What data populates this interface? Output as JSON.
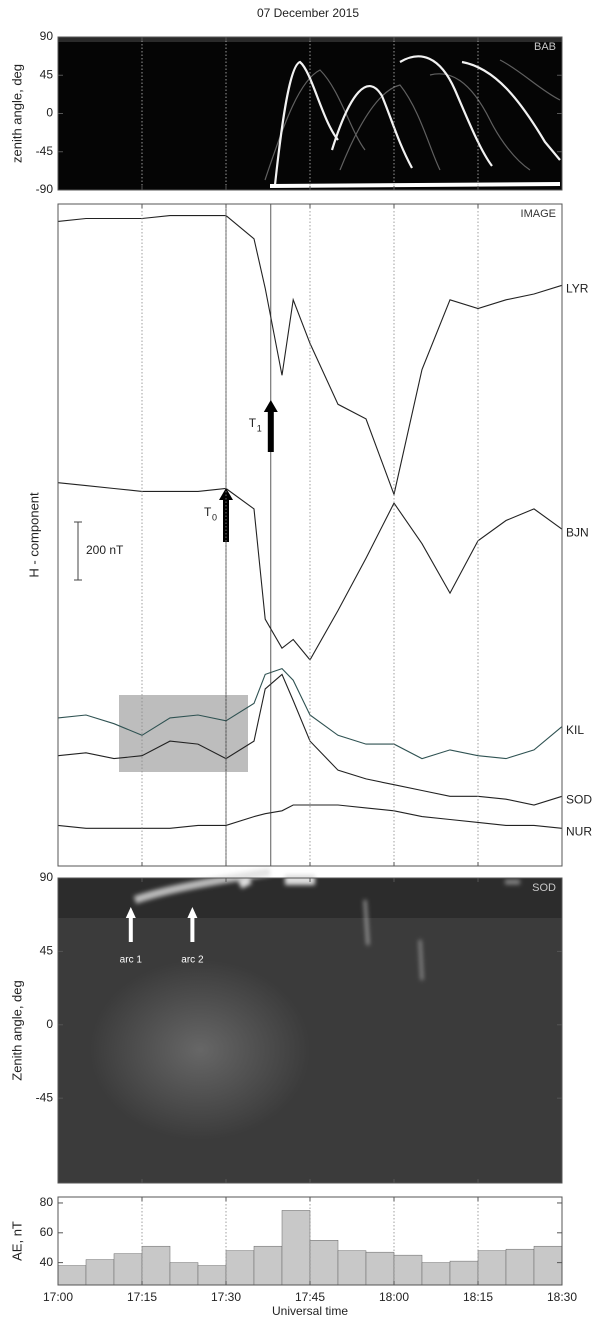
{
  "title": "07 December 2015",
  "chart_data": [
    {
      "type": "image",
      "label": "BAB",
      "y_label": "zenith angle, deg",
      "ylim": [
        -90,
        90
      ],
      "yticks": [
        90,
        45,
        0,
        -45,
        -90
      ],
      "xlim": [
        "17:00",
        "18:30"
      ],
      "xticks": [
        "17:00",
        "17:15",
        "17:30",
        "17:45",
        "18:00",
        "18:15",
        "18:30"
      ],
      "grid": true
    },
    {
      "type": "line",
      "label": "IMAGE",
      "y_label": "H - component",
      "xlim": [
        "17:00",
        "18:30"
      ],
      "xticks": [
        "17:00",
        "17:15",
        "17:30",
        "17:45",
        "18:00",
        "18:15",
        "18:30"
      ],
      "grid": true,
      "ylim": [
        0,
        2280
      ],
      "x": [
        "17:00",
        "17:05",
        "17:10",
        "17:15",
        "17:20",
        "17:25",
        "17:30",
        "17:35",
        "17:37",
        "17:40",
        "17:42",
        "17:45",
        "17:50",
        "17:55",
        "18:00",
        "18:05",
        "18:10",
        "18:15",
        "18:20",
        "18:25",
        "18:30"
      ],
      "series": [
        {
          "name": "LYR",
          "color": "#222222",
          "values": [
            2220,
            2230,
            2230,
            2230,
            2240,
            2240,
            2240,
            2160,
            1990,
            1690,
            1950,
            1800,
            1590,
            1540,
            1280,
            1710,
            1950,
            1920,
            1950,
            1970,
            2000
          ]
        },
        {
          "name": "BJN",
          "color": "#222222",
          "values": [
            1320,
            1310,
            1300,
            1290,
            1290,
            1290,
            1300,
            1230,
            850,
            750,
            780,
            710,
            880,
            1060,
            1250,
            1110,
            940,
            1120,
            1190,
            1230,
            1160
          ]
        },
        {
          "name": "KIL",
          "color": "#2f5252",
          "values": [
            510,
            520,
            490,
            450,
            510,
            520,
            500,
            560,
            660,
            680,
            640,
            520,
            450,
            420,
            420,
            370,
            400,
            380,
            370,
            400,
            480
          ]
        },
        {
          "name": "SOD",
          "color": "#222222",
          "values": [
            380,
            390,
            370,
            380,
            430,
            420,
            370,
            430,
            610,
            660,
            570,
            430,
            330,
            300,
            280,
            260,
            240,
            240,
            230,
            210,
            240
          ]
        },
        {
          "name": "NUR",
          "color": "#222222",
          "values": [
            140,
            130,
            130,
            130,
            130,
            140,
            140,
            170,
            180,
            190,
            210,
            210,
            210,
            200,
            190,
            170,
            160,
            150,
            140,
            140,
            130
          ]
        }
      ],
      "scale_bar": {
        "value": 200,
        "label": "200 nT"
      },
      "annotations": [
        {
          "label": "T",
          "sub": "0",
          "x": "17:30"
        },
        {
          "label": "T",
          "sub": "1",
          "x": "17:38"
        }
      ]
    },
    {
      "type": "image",
      "label": "SOD",
      "y_label": "Zenith angle, deg",
      "ylim": [
        -97,
        90
      ],
      "yticks": [
        90,
        45,
        0,
        -45
      ],
      "xlim": [
        "17:00",
        "18:30"
      ],
      "xticks": [
        "17:00",
        "17:15",
        "17:30",
        "17:45",
        "18:00",
        "18:15",
        "18:30"
      ],
      "grid": false,
      "annotations": [
        {
          "label": "arc 1",
          "x": "17:13"
        },
        {
          "label": "arc 2",
          "x": "17:24"
        }
      ]
    },
    {
      "type": "histogram",
      "y_label": "AE, nT",
      "x_label": "Universal time",
      "color": "#c8c8c8",
      "ylim": [
        25,
        84
      ],
      "yticks": [
        40,
        60,
        80
      ],
      "xlim": [
        "17:00",
        "18:30"
      ],
      "xticks": [
        "17:00",
        "17:15",
        "17:30",
        "17:45",
        "18:00",
        "18:15",
        "18:30"
      ],
      "grid": true,
      "bins": [
        "17:00",
        "17:05",
        "17:10",
        "17:15",
        "17:20",
        "17:25",
        "17:30",
        "17:35",
        "17:40",
        "17:45",
        "17:50",
        "17:55",
        "18:00",
        "18:05",
        "18:10",
        "18:15",
        "18:20",
        "18:25",
        "18:30"
      ],
      "values": [
        38,
        42,
        46,
        51,
        40,
        38,
        48,
        51,
        75,
        55,
        48,
        47,
        45,
        40,
        41,
        48,
        49,
        51
      ]
    }
  ]
}
